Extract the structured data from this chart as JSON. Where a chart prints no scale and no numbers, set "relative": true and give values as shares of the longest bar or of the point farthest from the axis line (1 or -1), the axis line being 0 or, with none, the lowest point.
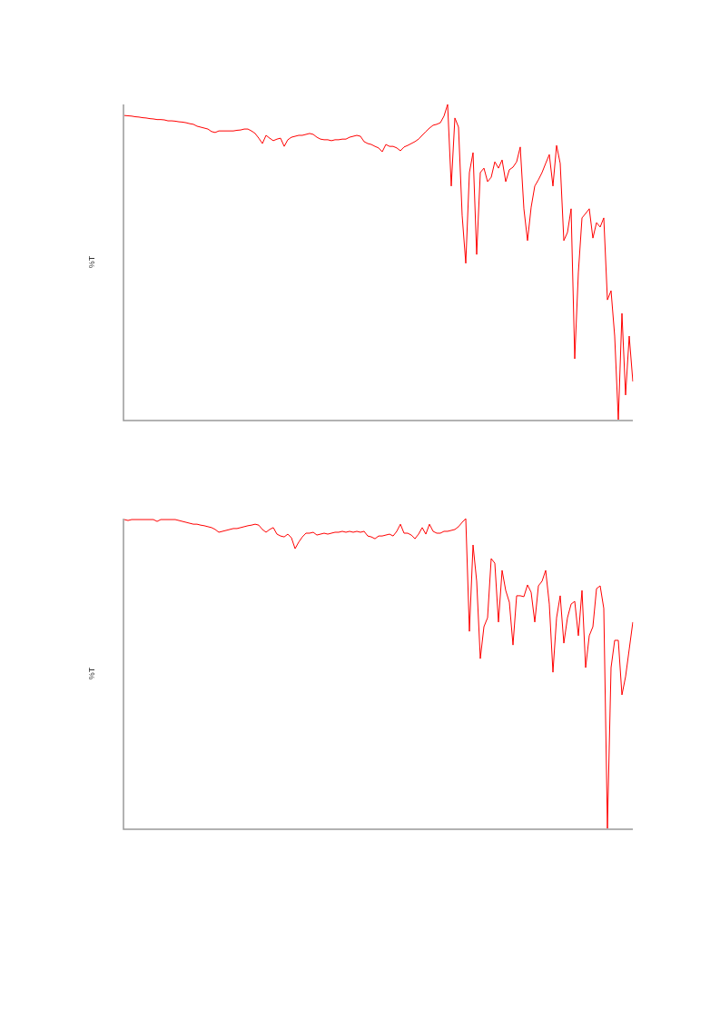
{
  "chart_data": [
    {
      "type": "line",
      "ylabel": "%T",
      "relative": true,
      "tick_labels": false,
      "marker": "none",
      "line_style": "solid",
      "categories": [
        null,
        null,
        null,
        null,
        null,
        null,
        null,
        null,
        null,
        null,
        null,
        null,
        null,
        null,
        null,
        null,
        null,
        null,
        null,
        null,
        null,
        null,
        null,
        null,
        null,
        null,
        null,
        null,
        null,
        null,
        null,
        null,
        null,
        null,
        null,
        null,
        null,
        null,
        null,
        null,
        null,
        null,
        null,
        null,
        null,
        null,
        null,
        null,
        null,
        null,
        null,
        null,
        null,
        null,
        null,
        null,
        null,
        null,
        null,
        null,
        null,
        null,
        null,
        null,
        null,
        null,
        null,
        null,
        null,
        null,
        null,
        null,
        null,
        null,
        null,
        null,
        null,
        null,
        null,
        null,
        null,
        null,
        null,
        null,
        null,
        null,
        null,
        null,
        null,
        null,
        null,
        null,
        null,
        null,
        null,
        null,
        null,
        null,
        null,
        null,
        null,
        null,
        null,
        null,
        null,
        null,
        null,
        null,
        null,
        null,
        null,
        null,
        null,
        null,
        null,
        null,
        null,
        null,
        null,
        null,
        null,
        null,
        null,
        null,
        null,
        null,
        null,
        null,
        null,
        null,
        null,
        null,
        null,
        null,
        null,
        null,
        null,
        null,
        null,
        null,
        null
      ],
      "series": [
        {
          "color": "#ff0000",
          "values": [
            0.965,
            0.964,
            0.963,
            0.961,
            0.96,
            0.958,
            0.957,
            0.955,
            0.954,
            0.952,
            0.952,
            0.951,
            0.948,
            0.948,
            0.947,
            0.945,
            0.944,
            0.942,
            0.939,
            0.937,
            0.931,
            0.928,
            0.925,
            0.922,
            0.914,
            0.911,
            0.916,
            0.916,
            0.916,
            0.916,
            0.916,
            0.918,
            0.919,
            0.922,
            0.922,
            0.916,
            0.908,
            0.893,
            0.876,
            0.902,
            0.893,
            0.885,
            0.89,
            0.893,
            0.867,
            0.888,
            0.896,
            0.899,
            0.902,
            0.902,
            0.905,
            0.908,
            0.905,
            0.896,
            0.89,
            0.888,
            0.888,
            0.885,
            0.888,
            0.888,
            0.89,
            0.89,
            0.896,
            0.899,
            0.902,
            0.899,
            0.882,
            0.876,
            0.873,
            0.867,
            0.862,
            0.85,
            0.873,
            0.867,
            0.867,
            0.862,
            0.853,
            0.865,
            0.87,
            0.876,
            0.882,
            0.89,
            0.902,
            0.914,
            0.925,
            0.934,
            0.937,
            0.942,
            0.963,
            1,
            0.741,
            0.957,
            0.928,
            0.648,
            0.496,
            0.784,
            0.847,
            0.524,
            0.784,
            0.798,
            0.755,
            0.769,
            0.818,
            0.798,
            0.824,
            0.755,
            0.793,
            0.801,
            0.818,
            0.865,
            0.669,
            0.568,
            0.674,
            0.741,
            0.761,
            0.784,
            0.813,
            0.841,
            0.741,
            0.87,
            0.813,
            0.568,
            0.594,
            0.669,
            0.193,
            0.467,
            0.64,
            0.654,
            0.669,
            0.576,
            0.625,
            0.611,
            0.64,
            0.38,
            0.409,
            0.265,
            0,
            0.337,
            0.078,
            0.265,
            0.121
          ]
        }
      ]
    },
    {
      "type": "line",
      "ylabel": "%T",
      "relative": true,
      "tick_labels": false,
      "marker": "none",
      "line_style": "solid",
      "categories": [
        null,
        null,
        null,
        null,
        null,
        null,
        null,
        null,
        null,
        null,
        null,
        null,
        null,
        null,
        null,
        null,
        null,
        null,
        null,
        null,
        null,
        null,
        null,
        null,
        null,
        null,
        null,
        null,
        null,
        null,
        null,
        null,
        null,
        null,
        null,
        null,
        null,
        null,
        null,
        null,
        null,
        null,
        null,
        null,
        null,
        null,
        null,
        null,
        null,
        null,
        null,
        null,
        null,
        null,
        null,
        null,
        null,
        null,
        null,
        null,
        null,
        null,
        null,
        null,
        null,
        null,
        null,
        null,
        null,
        null,
        null,
        null,
        null,
        null,
        null,
        null,
        null,
        null,
        null,
        null,
        null,
        null,
        null,
        null,
        null,
        null,
        null,
        null,
        null,
        null,
        null,
        null,
        null,
        null,
        null,
        null,
        null,
        null,
        null,
        null,
        null,
        null,
        null,
        null,
        null,
        null,
        null,
        null,
        null,
        null,
        null,
        null,
        null,
        null,
        null,
        null,
        null,
        null,
        null,
        null,
        null,
        null,
        null,
        null,
        null,
        null,
        null,
        null,
        null,
        null,
        null,
        null,
        null,
        null,
        null,
        null,
        null,
        null,
        null,
        null,
        null
      ],
      "series": [
        {
          "color": "#ff0000",
          "values": [
            0.997,
            0.994,
            0.997,
            0.997,
            0.997,
            0.997,
            0.997,
            0.997,
            0.997,
            0.991,
            0.997,
            0.997,
            0.997,
            0.997,
            0.997,
            0.994,
            0.991,
            0.988,
            0.985,
            0.982,
            0.982,
            0.979,
            0.977,
            0.974,
            0.971,
            0.965,
            0.956,
            0.959,
            0.962,
            0.965,
            0.968,
            0.968,
            0.971,
            0.974,
            0.977,
            0.979,
            0.982,
            0.979,
            0.965,
            0.956,
            0.965,
            0.971,
            0.95,
            0.944,
            0.941,
            0.95,
            0.938,
            0.903,
            0.924,
            0.941,
            0.953,
            0.953,
            0.956,
            0.947,
            0.95,
            0.953,
            0.95,
            0.953,
            0.956,
            0.956,
            0.959,
            0.956,
            0.959,
            0.956,
            0.959,
            0.956,
            0.959,
            0.944,
            0.941,
            0.935,
            0.944,
            0.944,
            0.947,
            0.95,
            0.944,
            0.959,
            0.982,
            0.953,
            0.953,
            0.947,
            0.935,
            0.95,
            0.971,
            0.95,
            0.982,
            0.959,
            0.953,
            0.953,
            0.959,
            0.959,
            0.962,
            0.965,
            0.974,
            0.988,
            1,
            0.636,
            0.915,
            0.798,
            0.548,
            0.651,
            0.68,
            0.871,
            0.856,
            0.666,
            0.833,
            0.768,
            0.73,
            0.592,
            0.751,
            0.751,
            0.748,
            0.786,
            0.762,
            0.666,
            0.783,
            0.798,
            0.833,
            0.724,
            0.504,
            0.68,
            0.751,
            0.598,
            0.68,
            0.724,
            0.733,
            0.622,
            0.768,
            0.519,
            0.622,
            0.651,
            0.774,
            0.783,
            0.71,
            0,
            0.519,
            0.607,
            0.607,
            0.431,
            0.49,
            0.578,
            0.666
          ]
        }
      ]
    }
  ]
}
